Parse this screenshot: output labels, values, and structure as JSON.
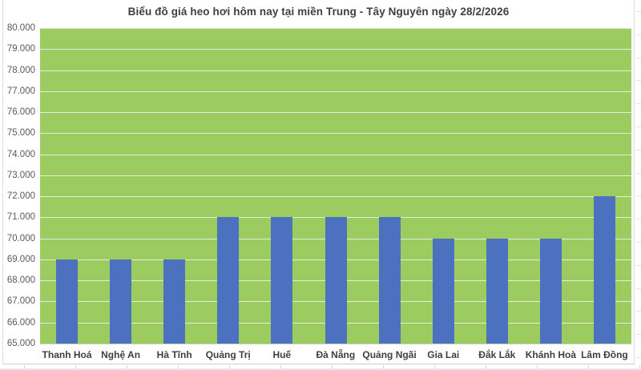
{
  "chart_data": {
    "type": "bar",
    "title": "Biểu đồ giá heo hơi hôm nay tại miền Trung - Tây Nguyên ngày 28/2/2026",
    "categories": [
      "Thanh Hoá",
      "Nghệ An",
      "Hà Tĩnh",
      "Quảng Trị",
      "Huế",
      "Đà Nẵng",
      "Quảng Ngãi",
      "Gia Lai",
      "Đắk Lắk",
      "Khánh Hoà",
      "Lâm Đồng"
    ],
    "values": [
      69000,
      69000,
      69000,
      71000,
      71000,
      71000,
      71000,
      70000,
      70000,
      70000,
      72000
    ],
    "xlabel": "",
    "ylabel": "",
    "ylim": [
      65000,
      80000
    ],
    "ytick_step": 1000,
    "ytick_labels": [
      "80.000",
      "79.000",
      "78.000",
      "77.000",
      "76.000",
      "75.000",
      "74.000",
      "73.000",
      "72.000",
      "71.000",
      "70.000",
      "69.000",
      "68.000",
      "67.000",
      "66.000",
      "65.000"
    ],
    "grid": true,
    "legend": "none",
    "colors": {
      "bar": "#4c72bf",
      "plot_background": "#9ccc60",
      "gridline": "#e6ecdc",
      "axis_line": "#c8cdc0",
      "title_text": "#3f3f3f",
      "tick_text": "#595959"
    }
  }
}
